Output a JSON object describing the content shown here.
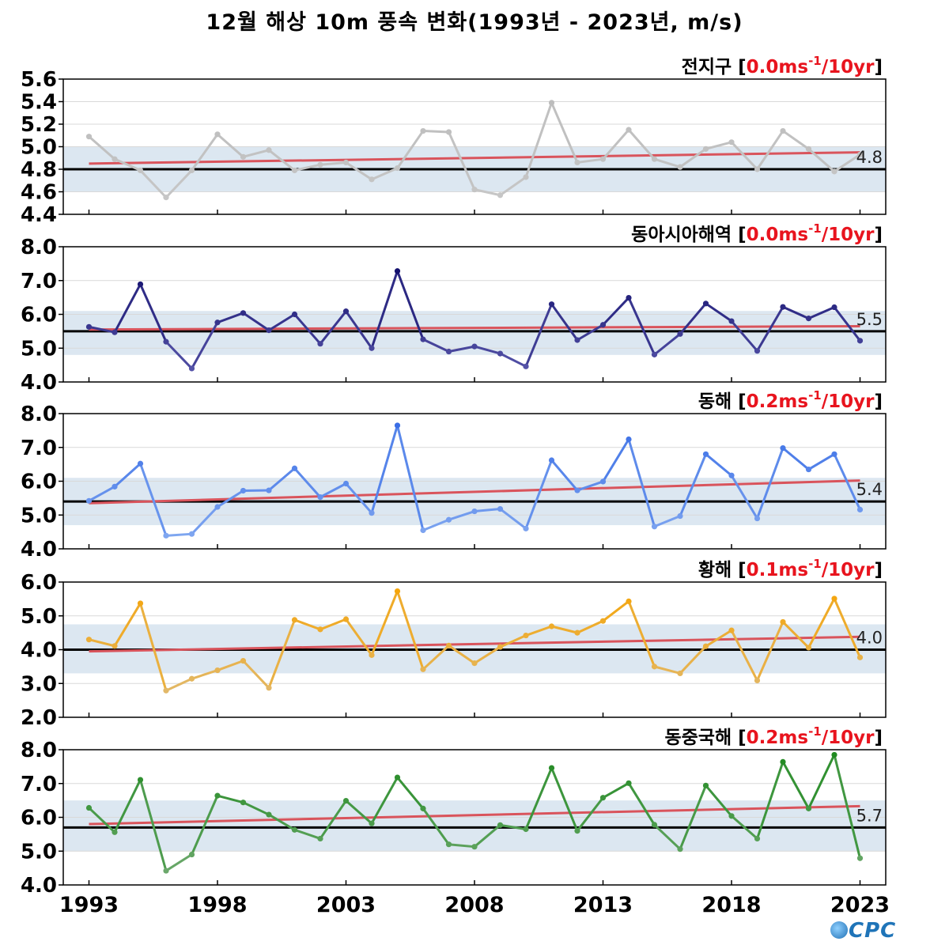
{
  "title": "12월 해상 10m 풍속 변화(1993년 - 2023년, m/s)",
  "logo_text": "CPC",
  "colors": {
    "trend": "#d9545c",
    "mean": "#000000",
    "band": "#dce7f1",
    "trend_label": "#e8141e"
  },
  "chart_data": [
    {
      "type": "line",
      "region": "전지구",
      "trend_text": "0.0ms",
      "trend_exp": "-1",
      "trend_unit": "/10yr",
      "mean": 4.8,
      "mean_label": "4.8",
      "band": [
        4.6,
        5.0
      ],
      "ylim": [
        4.4,
        5.6
      ],
      "yticks": [
        4.4,
        4.6,
        4.8,
        5.0,
        5.2,
        5.4,
        5.6
      ],
      "ytick_labels": [
        "4.4",
        "4.6",
        "4.8",
        "5.0",
        "5.2",
        "5.4",
        "5.6"
      ],
      "trend_line": [
        4.85,
        4.95
      ],
      "color_light": "#c6c6c6",
      "color_dark": "#bdbdbd",
      "x": [
        1993,
        1994,
        1995,
        1996,
        1997,
        1998,
        1999,
        2000,
        2001,
        2002,
        2003,
        2004,
        2005,
        2006,
        2007,
        2008,
        2009,
        2010,
        2011,
        2012,
        2013,
        2014,
        2015,
        2016,
        2017,
        2018,
        2019,
        2020,
        2021,
        2022,
        2023
      ],
      "values": [
        5.09,
        4.89,
        4.79,
        4.55,
        4.79,
        5.11,
        4.91,
        4.97,
        4.79,
        4.84,
        4.86,
        4.71,
        4.81,
        5.14,
        5.13,
        4.62,
        4.57,
        4.73,
        5.39,
        4.86,
        4.89,
        5.15,
        4.89,
        4.82,
        4.98,
        5.04,
        4.8,
        5.14,
        4.98,
        4.78,
        4.93
      ]
    },
    {
      "type": "line",
      "region": "동아시아해역",
      "trend_text": "0.0ms",
      "trend_exp": "-1",
      "trend_unit": "/10yr",
      "mean": 5.5,
      "mean_label": "5.5",
      "band": [
        4.8,
        6.1
      ],
      "ylim": [
        4.0,
        8.0
      ],
      "yticks": [
        4.0,
        5.0,
        6.0,
        7.0,
        8.0
      ],
      "ytick_labels": [
        "4.0",
        "5.0",
        "6.0",
        "7.0",
        "8.0"
      ],
      "trend_line": [
        5.55,
        5.65
      ],
      "color_light": "#5553a8",
      "color_dark": "#14116e",
      "x": [
        1993,
        1994,
        1995,
        1996,
        1997,
        1998,
        1999,
        2000,
        2001,
        2002,
        2003,
        2004,
        2005,
        2006,
        2007,
        2008,
        2009,
        2010,
        2011,
        2012,
        2013,
        2014,
        2015,
        2016,
        2017,
        2018,
        2019,
        2020,
        2021,
        2022,
        2023
      ],
      "values": [
        5.63,
        5.47,
        6.89,
        5.19,
        4.4,
        5.76,
        6.04,
        5.53,
        6.0,
        5.13,
        6.09,
        5.0,
        7.28,
        5.26,
        4.9,
        5.05,
        4.84,
        4.46,
        6.3,
        5.24,
        5.69,
        6.49,
        4.81,
        5.42,
        6.32,
        5.8,
        4.92,
        6.22,
        5.88,
        6.21,
        5.22
      ]
    },
    {
      "type": "line",
      "region": "동해",
      "trend_text": "0.2ms",
      "trend_exp": "-1",
      "trend_unit": "/10yr",
      "mean": 5.4,
      "mean_label": "5.4",
      "band": [
        4.7,
        6.1
      ],
      "ylim": [
        4.0,
        8.0
      ],
      "yticks": [
        4.0,
        5.0,
        6.0,
        7.0,
        8.0
      ],
      "ytick_labels": [
        "4.0",
        "5.0",
        "6.0",
        "7.0",
        "8.0"
      ],
      "trend_line": [
        5.35,
        6.02
      ],
      "color_light": "#7fa6f0",
      "color_dark": "#3a6ee6",
      "x": [
        1993,
        1994,
        1995,
        1996,
        1997,
        1998,
        1999,
        2000,
        2001,
        2002,
        2003,
        2004,
        2005,
        2006,
        2007,
        2008,
        2009,
        2010,
        2011,
        2012,
        2013,
        2014,
        2015,
        2016,
        2017,
        2018,
        2019,
        2020,
        2021,
        2022,
        2023
      ],
      "values": [
        5.42,
        5.84,
        6.52,
        4.39,
        4.44,
        5.24,
        5.72,
        5.73,
        6.38,
        5.53,
        5.93,
        5.06,
        7.65,
        4.55,
        4.86,
        5.11,
        5.18,
        4.6,
        6.62,
        5.73,
        5.99,
        7.24,
        4.66,
        4.97,
        6.8,
        6.17,
        4.9,
        6.98,
        6.35,
        6.8,
        5.16
      ]
    },
    {
      "type": "line",
      "region": "황해",
      "trend_text": "0.1ms",
      "trend_exp": "-1",
      "trend_unit": "/10yr",
      "mean": 4.0,
      "mean_label": "4.0",
      "band": [
        3.3,
        4.75
      ],
      "ylim": [
        2.0,
        6.0
      ],
      "yticks": [
        2.0,
        3.0,
        4.0,
        5.0,
        6.0
      ],
      "ytick_labels": [
        "2.0",
        "3.0",
        "4.0",
        "5.0",
        "6.0"
      ],
      "trend_line": [
        3.95,
        4.38
      ],
      "color_light": "#e2b868",
      "color_dark": "#f5a50a",
      "x": [
        1993,
        1994,
        1995,
        1996,
        1997,
        1998,
        1999,
        2000,
        2001,
        2002,
        2003,
        2004,
        2005,
        2006,
        2007,
        2008,
        2009,
        2010,
        2011,
        2012,
        2013,
        2014,
        2015,
        2016,
        2017,
        2018,
        2019,
        2020,
        2021,
        2022,
        2023
      ],
      "values": [
        4.3,
        4.11,
        5.37,
        2.79,
        3.14,
        3.39,
        3.67,
        2.87,
        4.88,
        4.6,
        4.9,
        3.84,
        5.73,
        3.42,
        4.12,
        3.6,
        4.08,
        4.42,
        4.69,
        4.5,
        4.85,
        5.43,
        3.5,
        3.3,
        4.1,
        4.57,
        3.09,
        4.82,
        4.06,
        5.51,
        3.77
      ]
    },
    {
      "type": "line",
      "region": "동중국해",
      "trend_text": "0.2ms",
      "trend_exp": "-1",
      "trend_unit": "/10yr",
      "mean": 5.7,
      "mean_label": "5.7",
      "band": [
        5.0,
        6.5
      ],
      "ylim": [
        4.0,
        8.0
      ],
      "yticks": [
        4.0,
        5.0,
        6.0,
        7.0,
        8.0
      ],
      "ytick_labels": [
        "4.0",
        "5.0",
        "6.0",
        "7.0",
        "8.0"
      ],
      "trend_line": [
        5.8,
        6.33
      ],
      "color_light": "#6ba86b",
      "color_dark": "#208a20",
      "x": [
        1993,
        1994,
        1995,
        1996,
        1997,
        1998,
        1999,
        2000,
        2001,
        2002,
        2003,
        2004,
        2005,
        2006,
        2007,
        2008,
        2009,
        2010,
        2011,
        2012,
        2013,
        2014,
        2015,
        2016,
        2017,
        2018,
        2019,
        2020,
        2021,
        2022,
        2023
      ],
      "values": [
        6.28,
        5.56,
        7.11,
        4.42,
        4.9,
        6.64,
        6.44,
        6.08,
        5.63,
        5.37,
        6.49,
        5.82,
        7.18,
        6.26,
        5.2,
        5.13,
        5.77,
        5.65,
        7.46,
        5.6,
        6.58,
        7.01,
        5.78,
        5.06,
        6.94,
        6.04,
        5.37,
        7.64,
        6.26,
        7.85,
        4.79
      ]
    }
  ],
  "x_axis": {
    "ticks": [
      1993,
      1998,
      2003,
      2008,
      2013,
      2018,
      2023
    ],
    "tick_labels": [
      "1993",
      "1998",
      "2003",
      "2008",
      "2013",
      "2018",
      "2023"
    ],
    "xlim": [
      1992.0,
      2024.0
    ]
  }
}
